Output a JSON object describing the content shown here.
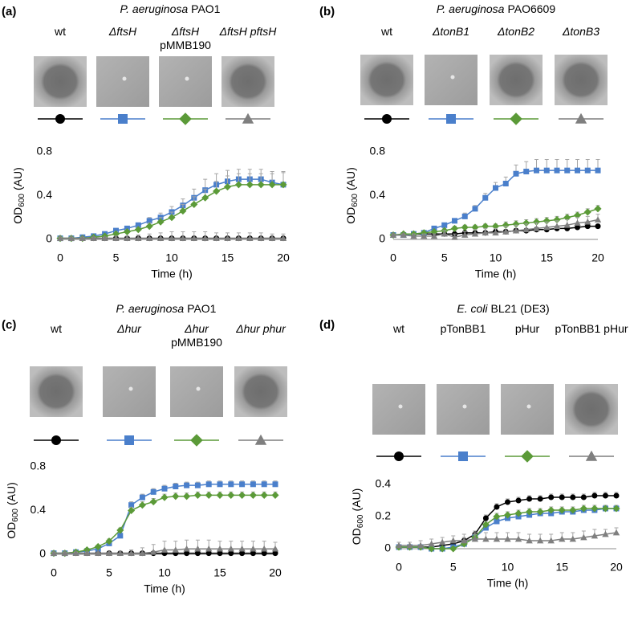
{
  "chart_data": [
    {
      "type": "line",
      "panel": "(a)",
      "title": {
        "species": "P. aeruginosa",
        "strain": "PAO1"
      },
      "xlabel": "Time (h)",
      "ylabel": {
        "main": "OD",
        "sub": "600",
        "unit": "(AU)"
      },
      "x": [
        0,
        1,
        2,
        3,
        4,
        5,
        6,
        7,
        8,
        9,
        10,
        11,
        12,
        13,
        14,
        15,
        16,
        17,
        18,
        19,
        20
      ],
      "xlim": [
        0,
        20
      ],
      "xticks": [
        0,
        5,
        10,
        15,
        20
      ],
      "ylim": [
        0,
        0.8
      ],
      "yticks": [
        0,
        0.4,
        0.8
      ],
      "series": [
        {
          "name": "wt",
          "color": "#000000",
          "marker": "circle",
          "values": [
            0.01,
            0.01,
            0.01,
            0.01,
            0.01,
            0.01,
            0.01,
            0.01,
            0.01,
            0.01,
            0.01,
            0.01,
            0.01,
            0.01,
            0.01,
            0.01,
            0.01,
            0.01,
            0.01,
            0.01,
            0.01
          ],
          "errors": [
            0.01,
            0.01,
            0.01,
            0.01,
            0.01,
            0.01,
            0.01,
            0.01,
            0.01,
            0.01,
            0.01,
            0.01,
            0.01,
            0.01,
            0.01,
            0.01,
            0.01,
            0.01,
            0.01,
            0.01,
            0.01
          ]
        },
        {
          "name": "ΔftsH",
          "color": "#4a7fcb",
          "marker": "square",
          "values": [
            0.01,
            0.01,
            0.02,
            0.03,
            0.05,
            0.08,
            0.1,
            0.13,
            0.17,
            0.2,
            0.25,
            0.31,
            0.38,
            0.45,
            0.5,
            0.53,
            0.55,
            0.55,
            0.55,
            0.52,
            0.5
          ],
          "errors": [
            0.01,
            0.01,
            0.01,
            0.01,
            0.01,
            0.02,
            0.02,
            0.02,
            0.03,
            0.04,
            0.05,
            0.06,
            0.08,
            0.1,
            0.1,
            0.1,
            0.09,
            0.09,
            0.09,
            0.1,
            0.11
          ]
        },
        {
          "name": "ΔftsH\npMMB190",
          "color": "#5b9a38",
          "marker": "diamond",
          "values": [
            0.01,
            0.01,
            0.01,
            0.02,
            0.03,
            0.05,
            0.07,
            0.09,
            0.12,
            0.16,
            0.2,
            0.26,
            0.32,
            0.38,
            0.44,
            0.48,
            0.5,
            0.5,
            0.5,
            0.5,
            0.5
          ],
          "errors": [
            0.01,
            0.01,
            0.01,
            0.01,
            0.01,
            0.02,
            0.02,
            0.02,
            0.03,
            0.04,
            0.05,
            0.06,
            0.07,
            0.08,
            0.09,
            0.1,
            0.1,
            0.1,
            0.1,
            0.1,
            0.12
          ]
        },
        {
          "name": "ΔftsH pftsH",
          "color": "#7f7f7f",
          "marker": "triangle",
          "values": [
            0.01,
            0.01,
            0.01,
            0.01,
            0.01,
            0.01,
            0.01,
            0.01,
            0.01,
            0.01,
            0.01,
            0.01,
            0.01,
            0.01,
            0.01,
            0.01,
            0.01,
            0.01,
            0.01,
            0.01,
            0.01
          ],
          "errors": [
            0.01,
            0.01,
            0.01,
            0.01,
            0.01,
            0.02,
            0.02,
            0.03,
            0.04,
            0.05,
            0.06,
            0.06,
            0.06,
            0.06,
            0.05,
            0.05,
            0.05,
            0.05,
            0.05,
            0.04,
            0.04
          ]
        }
      ]
    },
    {
      "type": "line",
      "panel": "(b)",
      "title": {
        "species": "P. aeruginosa",
        "strain": "PAO6609"
      },
      "xlabel": "Time (h)",
      "ylabel": {
        "main": "OD",
        "sub": "600",
        "unit": "(AU)"
      },
      "x": [
        0,
        1,
        2,
        3,
        4,
        5,
        6,
        7,
        8,
        9,
        10,
        11,
        12,
        13,
        14,
        15,
        16,
        17,
        18,
        19,
        20
      ],
      "xlim": [
        0,
        20
      ],
      "xticks": [
        0,
        5,
        10,
        15,
        20
      ],
      "ylim": [
        0,
        0.8
      ],
      "yticks": [
        0,
        0.4,
        0.8
      ],
      "series": [
        {
          "name": "wt",
          "color": "#000000",
          "marker": "circle",
          "values": [
            0.04,
            0.04,
            0.05,
            0.05,
            0.05,
            0.05,
            0.05,
            0.06,
            0.06,
            0.06,
            0.07,
            0.07,
            0.08,
            0.08,
            0.09,
            0.09,
            0.1,
            0.1,
            0.11,
            0.12,
            0.12
          ],
          "errors": [
            0.01,
            0.01,
            0.01,
            0.01,
            0.01,
            0.01,
            0.01,
            0.01,
            0.01,
            0.02,
            0.02,
            0.02,
            0.02,
            0.02,
            0.02,
            0.02,
            0.02,
            0.02,
            0.02,
            0.02,
            0.02
          ]
        },
        {
          "name": "ΔtonB1",
          "color": "#4a7fcb",
          "marker": "square",
          "values": [
            0.04,
            0.04,
            0.05,
            0.06,
            0.1,
            0.13,
            0.17,
            0.21,
            0.28,
            0.38,
            0.47,
            0.51,
            0.6,
            0.62,
            0.63,
            0.63,
            0.63,
            0.63,
            0.63,
            0.63,
            0.63
          ],
          "errors": [
            0.01,
            0.01,
            0.01,
            0.01,
            0.02,
            0.02,
            0.02,
            0.03,
            0.03,
            0.04,
            0.05,
            0.06,
            0.08,
            0.09,
            0.1,
            0.1,
            0.1,
            0.1,
            0.1,
            0.1,
            0.1
          ]
        },
        {
          "name": "ΔtonB2",
          "color": "#5b9a38",
          "marker": "diamond",
          "values": [
            0.04,
            0.05,
            0.05,
            0.06,
            0.07,
            0.08,
            0.1,
            0.11,
            0.11,
            0.12,
            0.12,
            0.13,
            0.14,
            0.15,
            0.16,
            0.17,
            0.18,
            0.2,
            0.22,
            0.25,
            0.28
          ],
          "errors": [
            0.01,
            0.01,
            0.01,
            0.01,
            0.01,
            0.02,
            0.02,
            0.02,
            0.02,
            0.02,
            0.02,
            0.03,
            0.03,
            0.03,
            0.03,
            0.03,
            0.03,
            0.03,
            0.03,
            0.03,
            0.03
          ]
        },
        {
          "name": "ΔtonB3",
          "color": "#7f7f7f",
          "marker": "triangle",
          "values": [
            0.04,
            0.04,
            0.03,
            0.03,
            0.03,
            0.05,
            0.02,
            0.04,
            0.05,
            0.06,
            0.06,
            0.07,
            0.08,
            0.09,
            0.1,
            0.11,
            0.12,
            0.13,
            0.15,
            0.16,
            0.18
          ],
          "errors": [
            0.01,
            0.01,
            0.02,
            0.02,
            0.02,
            0.03,
            0.03,
            0.03,
            0.04,
            0.04,
            0.04,
            0.05,
            0.05,
            0.05,
            0.05,
            0.05,
            0.05,
            0.05,
            0.05,
            0.05,
            0.05
          ]
        }
      ]
    },
    {
      "type": "line",
      "panel": "(c)",
      "title": {
        "species": "P. aeruginosa",
        "strain": "PAO1"
      },
      "xlabel": "Time (h)",
      "ylabel": {
        "main": "OD",
        "sub": "600",
        "unit": "(AU)"
      },
      "x": [
        0,
        1,
        2,
        3,
        4,
        5,
        6,
        7,
        8,
        9,
        10,
        11,
        12,
        13,
        14,
        15,
        16,
        17,
        18,
        19,
        20
      ],
      "xlim": [
        0,
        20
      ],
      "xticks": [
        0,
        5,
        10,
        15,
        20
      ],
      "ylim": [
        0,
        0.8
      ],
      "yticks": [
        0,
        0.4,
        0.8
      ],
      "series": [
        {
          "name": "wt",
          "color": "#000000",
          "marker": "circle",
          "values": [
            0.01,
            0.01,
            0.01,
            0.01,
            0.01,
            0.01,
            0.01,
            0.01,
            0.01,
            0.01,
            0.01,
            0.01,
            0.01,
            0.01,
            0.01,
            0.01,
            0.01,
            0.01,
            0.01,
            0.01,
            0.01
          ],
          "errors": [
            0.01,
            0.01,
            0.01,
            0.01,
            0.01,
            0.01,
            0.01,
            0.01,
            0.01,
            0.01,
            0.01,
            0.01,
            0.01,
            0.01,
            0.01,
            0.01,
            0.01,
            0.01,
            0.01,
            0.01,
            0.01
          ]
        },
        {
          "name": "Δhur",
          "color": "#4a7fcb",
          "marker": "square",
          "values": [
            0.01,
            0.01,
            0.02,
            0.03,
            0.05,
            0.1,
            0.17,
            0.45,
            0.52,
            0.57,
            0.6,
            0.62,
            0.63,
            0.63,
            0.64,
            0.64,
            0.64,
            0.64,
            0.64,
            0.64,
            0.64
          ],
          "errors": [
            0.01,
            0.01,
            0.01,
            0.01,
            0.01,
            0.02,
            0.02,
            0.03,
            0.03,
            0.03,
            0.03,
            0.03,
            0.03,
            0.03,
            0.03,
            0.03,
            0.03,
            0.03,
            0.03,
            0.03,
            0.03
          ]
        },
        {
          "name": "Δhur\npMMB190",
          "color": "#5b9a38",
          "marker": "diamond",
          "values": [
            0.01,
            0.01,
            0.02,
            0.04,
            0.07,
            0.12,
            0.22,
            0.4,
            0.45,
            0.48,
            0.52,
            0.53,
            0.53,
            0.54,
            0.54,
            0.54,
            0.54,
            0.54,
            0.54,
            0.54,
            0.54
          ],
          "errors": [
            0.01,
            0.01,
            0.01,
            0.01,
            0.01,
            0.02,
            0.02,
            0.03,
            0.03,
            0.03,
            0.03,
            0.03,
            0.03,
            0.03,
            0.03,
            0.03,
            0.03,
            0.03,
            0.03,
            0.03,
            0.03
          ]
        },
        {
          "name": "Δhur phur",
          "color": "#7f7f7f",
          "marker": "triangle",
          "values": [
            0.01,
            0.01,
            0.01,
            0.01,
            0.01,
            0.01,
            0.01,
            0.01,
            0.01,
            0.02,
            0.04,
            0.04,
            0.05,
            0.05,
            0.05,
            0.05,
            0.05,
            0.05,
            0.05,
            0.05,
            0.05
          ],
          "errors": [
            0.01,
            0.01,
            0.01,
            0.01,
            0.01,
            0.01,
            0.02,
            0.03,
            0.05,
            0.07,
            0.08,
            0.08,
            0.08,
            0.08,
            0.08,
            0.07,
            0.07,
            0.07,
            0.07,
            0.07,
            0.06
          ]
        }
      ]
    },
    {
      "type": "line",
      "panel": "(d)",
      "title": {
        "species": "E. coli",
        "strain": "BL21 (DE3)"
      },
      "xlabel": "Time (h)",
      "ylabel": {
        "main": "OD",
        "sub": "600",
        "unit": "(AU)"
      },
      "x": [
        0,
        1,
        2,
        3,
        4,
        5,
        6,
        7,
        8,
        9,
        10,
        11,
        12,
        13,
        14,
        15,
        16,
        17,
        18,
        19,
        20
      ],
      "xlim": [
        0,
        20
      ],
      "xticks": [
        0,
        5,
        10,
        15,
        20
      ],
      "ylim": [
        0,
        0.4
      ],
      "yticks": [
        0,
        0.2,
        0.4
      ],
      "series": [
        {
          "name": "wt",
          "color": "#000000",
          "marker": "circle",
          "values": [
            0.01,
            0.01,
            0.01,
            0.01,
            0.02,
            0.03,
            0.05,
            0.09,
            0.19,
            0.26,
            0.29,
            0.3,
            0.31,
            0.31,
            0.32,
            0.32,
            0.32,
            0.32,
            0.33,
            0.33,
            0.33
          ],
          "errors": [
            0.01,
            0.01,
            0.01,
            0.01,
            0.01,
            0.01,
            0.02,
            0.02,
            0.02,
            0.02,
            0.02,
            0.02,
            0.02,
            0.02,
            0.02,
            0.02,
            0.02,
            0.02,
            0.02,
            0.02,
            0.02
          ]
        },
        {
          "name": "pTonBB1",
          "color": "#4a7fcb",
          "marker": "square",
          "values": [
            0.01,
            0.01,
            0.01,
            0,
            0,
            0.01,
            0.03,
            0.07,
            0.13,
            0.17,
            0.19,
            0.2,
            0.21,
            0.22,
            0.22,
            0.23,
            0.23,
            0.24,
            0.24,
            0.25,
            0.25
          ],
          "errors": [
            0.01,
            0.01,
            0.01,
            0.01,
            0.01,
            0.01,
            0.01,
            0.02,
            0.02,
            0.02,
            0.02,
            0.02,
            0.02,
            0.02,
            0.02,
            0.02,
            0.02,
            0.02,
            0.02,
            0.02,
            0.02
          ]
        },
        {
          "name": "pHur",
          "color": "#5b9a38",
          "marker": "diamond",
          "values": [
            0.01,
            0.01,
            0.01,
            0,
            0,
            0,
            0.03,
            0.07,
            0.15,
            0.2,
            0.21,
            0.22,
            0.23,
            0.23,
            0.24,
            0.24,
            0.24,
            0.25,
            0.25,
            0.25,
            0.25
          ],
          "errors": [
            0.01,
            0.01,
            0.01,
            0.01,
            0.01,
            0.01,
            0.01,
            0.02,
            0.02,
            0.02,
            0.02,
            0.02,
            0.02,
            0.02,
            0.02,
            0.02,
            0.02,
            0.02,
            0.02,
            0.02,
            0.02
          ]
        },
        {
          "name": "pTonBB1 pHur",
          "color": "#7f7f7f",
          "marker": "triangle",
          "values": [
            0.02,
            0.02,
            0.02,
            0.03,
            0.04,
            0.05,
            0.05,
            0.06,
            0.06,
            0.06,
            0.06,
            0.06,
            0.05,
            0.05,
            0.05,
            0.06,
            0.06,
            0.07,
            0.08,
            0.09,
            0.1
          ],
          "errors": [
            0.02,
            0.02,
            0.03,
            0.03,
            0.03,
            0.03,
            0.04,
            0.04,
            0.04,
            0.04,
            0.04,
            0.04,
            0.04,
            0.04,
            0.04,
            0.04,
            0.04,
            0.04,
            0.04,
            0.03,
            0.03
          ]
        }
      ]
    }
  ]
}
